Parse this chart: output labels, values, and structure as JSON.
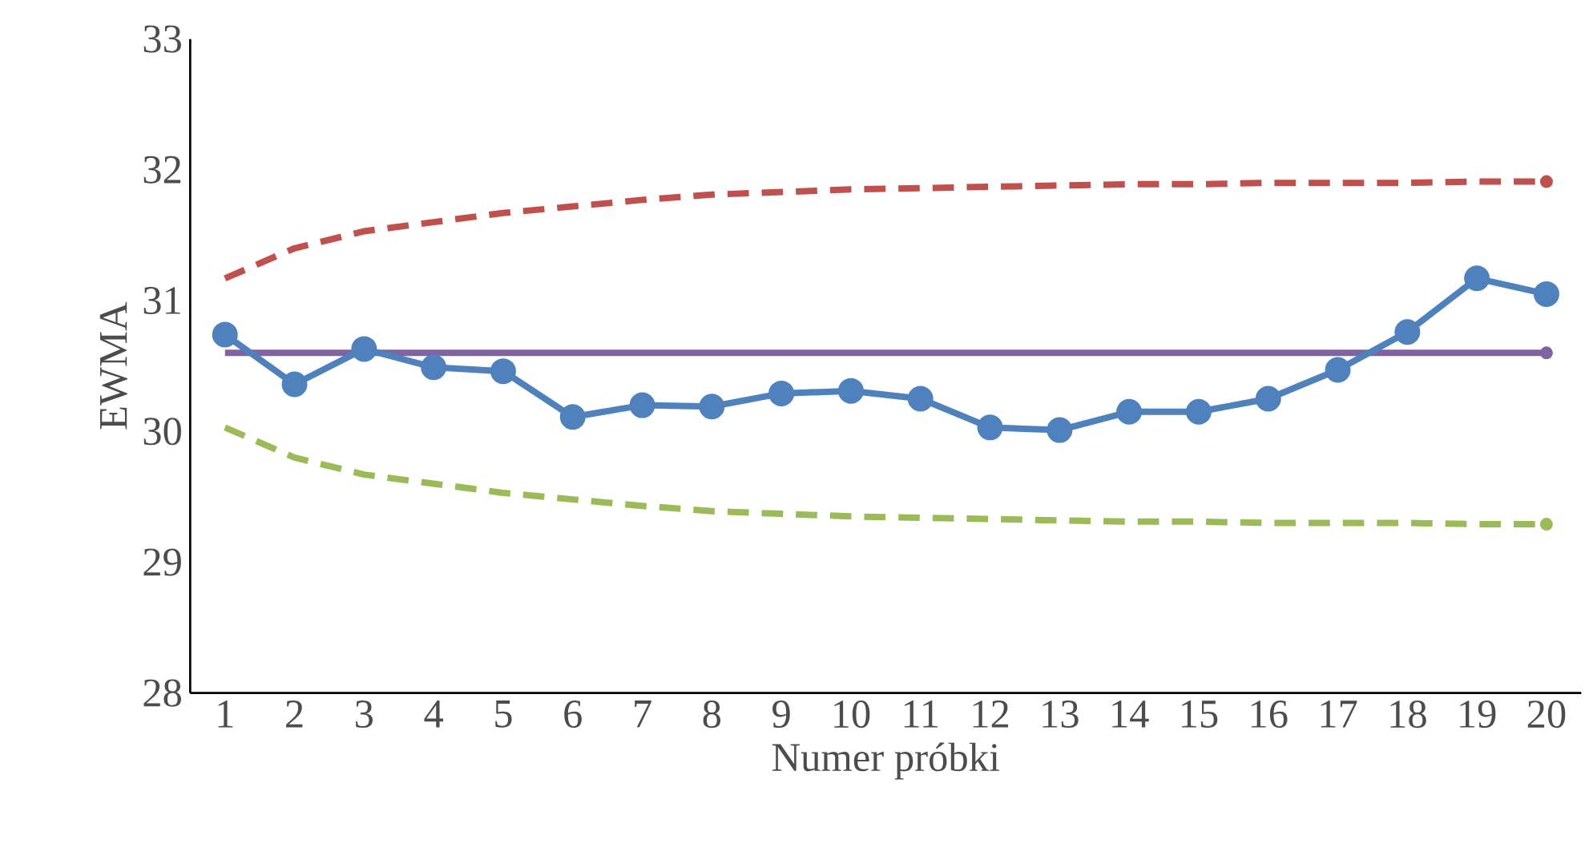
{
  "chart_data": {
    "type": "line",
    "xlabel": "Numer próbki",
    "ylabel": "EWMA",
    "categories": [
      "1",
      "2",
      "3",
      "4",
      "5",
      "6",
      "7",
      "8",
      "9",
      "10",
      "11",
      "12",
      "13",
      "14",
      "15",
      "16",
      "17",
      "18",
      "19",
      "20"
    ],
    "series": [
      {
        "color": "#c0504d",
        "line_style": "dashed",
        "marker": "none",
        "values": [
          31.17,
          31.4,
          31.53,
          31.6,
          31.67,
          31.72,
          31.77,
          31.81,
          31.83,
          31.85,
          31.86,
          31.87,
          31.88,
          31.89,
          31.89,
          31.9,
          31.9,
          31.9,
          31.91,
          31.91
        ]
      },
      {
        "color": "#9bbb59",
        "line_style": "dashed",
        "marker": "none",
        "values": [
          30.03,
          29.8,
          29.67,
          29.6,
          29.53,
          29.48,
          29.43,
          29.39,
          29.37,
          29.35,
          29.34,
          29.33,
          29.32,
          29.31,
          29.31,
          29.3,
          29.3,
          29.3,
          29.29,
          29.29
        ]
      },
      {
        "color": "#8064a2",
        "line_style": "solid",
        "marker": "none",
        "values": [
          30.6,
          30.6,
          30.6,
          30.6,
          30.6,
          30.6,
          30.6,
          30.6,
          30.6,
          30.6,
          30.6,
          30.6,
          30.6,
          30.6,
          30.6,
          30.6,
          30.6,
          30.6,
          30.6,
          30.6
        ]
      },
      {
        "color": "#4f81bd",
        "line_style": "solid",
        "marker": "circle",
        "values": [
          30.74,
          30.36,
          30.63,
          30.49,
          30.46,
          30.11,
          30.2,
          30.19,
          30.29,
          30.31,
          30.25,
          30.03,
          30.01,
          30.15,
          30.15,
          30.25,
          30.47,
          30.76,
          31.17,
          31.05
        ]
      }
    ],
    "ylim": [
      28,
      33
    ],
    "yticks": [
      28,
      29,
      30,
      31,
      32,
      33
    ],
    "grid": false
  }
}
